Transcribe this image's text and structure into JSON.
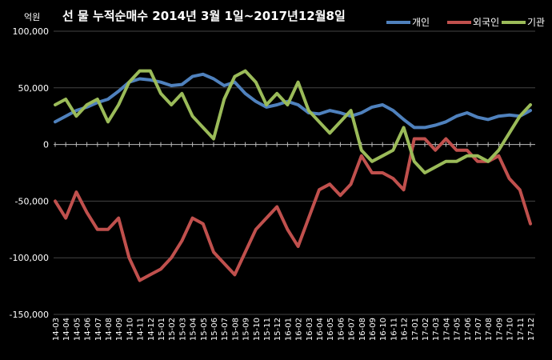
{
  "chart_data": {
    "type": "line",
    "title": "선 물 누적순매수 2014년 3월 1일~2017년12월8일",
    "unit_label": "억원",
    "ylim": [
      -150000,
      100000
    ],
    "yticks": [
      100000,
      50000,
      0,
      -50000,
      -100000,
      -150000
    ],
    "ytick_labels": [
      "100,000",
      "50,000",
      "0",
      "-50,000",
      "-100,000",
      "-150,000"
    ],
    "grid": true,
    "legend_position": "top-right",
    "categories": [
      "14-03",
      "14-04",
      "14-05",
      "14-06",
      "14-07",
      "14-08",
      "14-09",
      "14-10",
      "14-11",
      "14-12",
      "15-01",
      "15-02",
      "15-03",
      "15-04",
      "15-05",
      "15-06",
      "15-07",
      "15-08",
      "15-09",
      "15-10",
      "15-11",
      "15-12",
      "16-01",
      "16-02",
      "16-03",
      "16-04",
      "16-05",
      "16-06",
      "16-07",
      "16-08",
      "16-09",
      "16-10",
      "16-11",
      "16-12",
      "17-01",
      "17-02",
      "17-03",
      "17-04",
      "17-05",
      "17-06",
      "17-07",
      "17-08",
      "17-09",
      "17-10",
      "17-11",
      "17-12"
    ],
    "series": [
      {
        "name": "개인",
        "color": "#4f81bd",
        "values": [
          20000,
          25000,
          30000,
          33000,
          37000,
          40000,
          47000,
          55000,
          58000,
          57000,
          55000,
          52000,
          53000,
          60000,
          62000,
          58000,
          52000,
          55000,
          45000,
          38000,
          33000,
          35000,
          38000,
          35000,
          28000,
          27000,
          30000,
          28000,
          25000,
          28000,
          33000,
          35000,
          30000,
          22000,
          15000,
          15000,
          17000,
          20000,
          25000,
          28000,
          24000,
          22000,
          25000,
          26000,
          25000,
          30000
        ]
      },
      {
        "name": "외국인",
        "color": "#c0504d",
        "values": [
          -50000,
          -65000,
          -42000,
          -60000,
          -75000,
          -75000,
          -65000,
          -100000,
          -120000,
          -115000,
          -110000,
          -100000,
          -85000,
          -65000,
          -70000,
          -95000,
          -105000,
          -115000,
          -95000,
          -75000,
          -65000,
          -55000,
          -75000,
          -90000,
          -65000,
          -40000,
          -35000,
          -45000,
          -35000,
          -10000,
          -25000,
          -25000,
          -30000,
          -40000,
          5000,
          5000,
          -5000,
          5000,
          -5000,
          -5000,
          -15000,
          -15000,
          -10000,
          -30000,
          -40000,
          -70000
        ]
      },
      {
        "name": "기관",
        "color": "#9bbb59",
        "values": [
          35000,
          40000,
          25000,
          35000,
          40000,
          20000,
          35000,
          55000,
          65000,
          65000,
          45000,
          35000,
          45000,
          25000,
          15000,
          5000,
          40000,
          60000,
          65000,
          55000,
          35000,
          45000,
          35000,
          55000,
          30000,
          20000,
          10000,
          20000,
          30000,
          -5000,
          -15000,
          -10000,
          -5000,
          15000,
          -15000,
          -25000,
          -20000,
          -15000,
          -15000,
          -10000,
          -10000,
          -15000,
          -5000,
          10000,
          25000,
          35000
        ]
      }
    ]
  }
}
